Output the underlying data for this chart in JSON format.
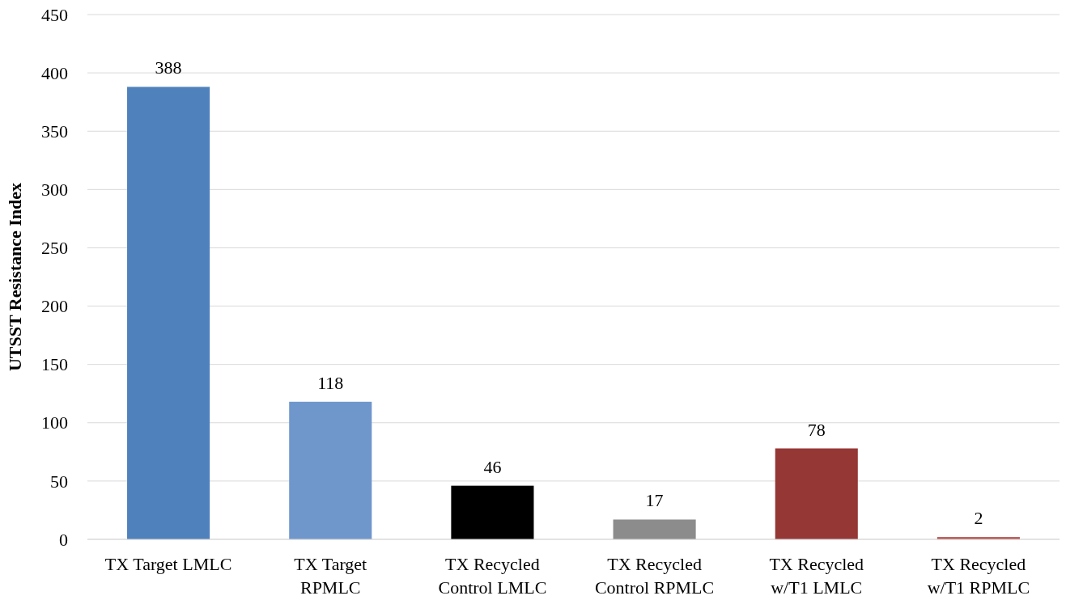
{
  "chart_data": {
    "type": "bar",
    "ylabel": "UTSST Resistance Index",
    "categories": [
      "TX Target LMLC",
      "TX Target RPMLC",
      "TX Recycled Control LMLC",
      "TX Recycled Control RPMLC",
      "TX Recycled w/T1 LMLC",
      "TX Recycled w/T1 RPMLC"
    ],
    "values": [
      388,
      118,
      46,
      17,
      78,
      2
    ],
    "colors": [
      "#4f81bd",
      "#6f97cc",
      "#000000",
      "#8c8c8c",
      "#953735",
      "#b85450"
    ],
    "ylim": [
      0,
      450
    ],
    "yticks": [
      0,
      50,
      100,
      150,
      200,
      250,
      300,
      350,
      400,
      450
    ],
    "grid": "y",
    "data_labels": true
  }
}
